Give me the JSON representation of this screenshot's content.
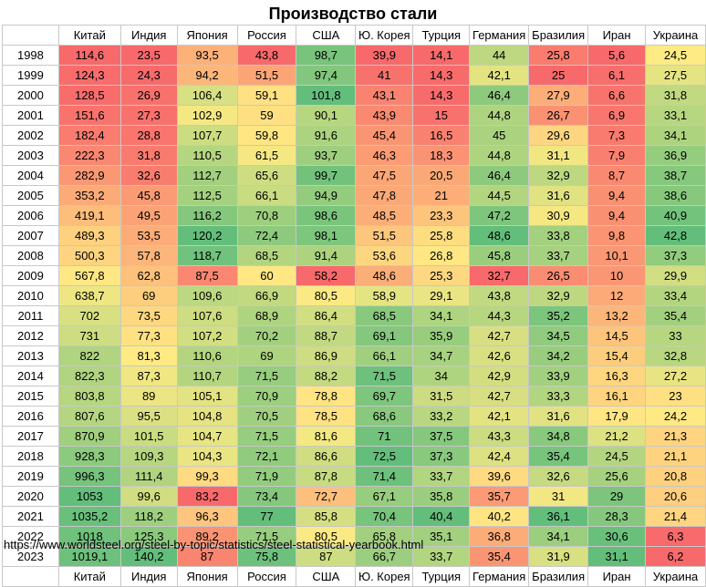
{
  "title": "Производство стали",
  "source_url": "https://www.worldsteel.org/steel-by-topic/statistics/steel-statistical-yearbook.html",
  "colors": {
    "low": "#f8696b",
    "mid": "#ffeb84",
    "high": "#63be7b"
  },
  "chart_data": {
    "type": "table",
    "columns": [
      "Китай",
      "Индия",
      "Япония",
      "Россия",
      "США",
      "Ю. Корея",
      "Турция",
      "Германия",
      "Бразилия",
      "Иран",
      "Украина"
    ],
    "rows": [
      {
        "year": "1998",
        "values": [
          "114,6",
          "23,5",
          "93,5",
          "43,8",
          "98,7",
          "39,9",
          "14,1",
          "44",
          "25,8",
          "5,6",
          "24,5"
        ]
      },
      {
        "year": "1999",
        "values": [
          "124,3",
          "24,3",
          "94,2",
          "51,5",
          "97,4",
          "41",
          "14,3",
          "42,1",
          "25",
          "6,1",
          "27,5"
        ]
      },
      {
        "year": "2000",
        "values": [
          "128,5",
          "26,9",
          "106,4",
          "59,1",
          "101,8",
          "43,1",
          "14,3",
          "46,4",
          "27,9",
          "6,6",
          "31,8"
        ]
      },
      {
        "year": "2001",
        "values": [
          "151,6",
          "27,3",
          "102,9",
          "59",
          "90,1",
          "43,9",
          "15",
          "44,8",
          "26,7",
          "6,9",
          "33,1"
        ]
      },
      {
        "year": "2002",
        "values": [
          "182,4",
          "28,8",
          "107,7",
          "59,8",
          "91,6",
          "45,4",
          "16,5",
          "45",
          "29,6",
          "7,3",
          "34,1"
        ]
      },
      {
        "year": "2003",
        "values": [
          "222,3",
          "31,8",
          "110,5",
          "61,5",
          "93,7",
          "46,3",
          "18,3",
          "44,8",
          "31,1",
          "7,9",
          "36,9"
        ]
      },
      {
        "year": "2004",
        "values": [
          "282,9",
          "32,6",
          "112,7",
          "65,6",
          "99,7",
          "47,5",
          "20,5",
          "46,4",
          "32,9",
          "8,7",
          "38,7"
        ]
      },
      {
        "year": "2005",
        "values": [
          "353,2",
          "45,8",
          "112,5",
          "66,1",
          "94,9",
          "47,8",
          "21",
          "44,5",
          "31,6",
          "9,4",
          "38,6"
        ]
      },
      {
        "year": "2006",
        "values": [
          "419,1",
          "49,5",
          "116,2",
          "70,8",
          "98,6",
          "48,5",
          "23,3",
          "47,2",
          "30,9",
          "9,4",
          "40,9"
        ]
      },
      {
        "year": "2007",
        "values": [
          "489,3",
          "53,5",
          "120,2",
          "72,4",
          "98,1",
          "51,5",
          "25,8",
          "48,6",
          "33,8",
          "9,8",
          "42,8"
        ]
      },
      {
        "year": "2008",
        "values": [
          "500,3",
          "57,8",
          "118,7",
          "68,5",
          "91,4",
          "53,6",
          "26,8",
          "45,8",
          "33,7",
          "10,1",
          "37,3"
        ]
      },
      {
        "year": "2009",
        "values": [
          "567,8",
          "62,8",
          "87,5",
          "60",
          "58,2",
          "48,6",
          "25,3",
          "32,7",
          "26,5",
          "10",
          "29,9"
        ]
      },
      {
        "year": "2010",
        "values": [
          "638,7",
          "69",
          "109,6",
          "66,9",
          "80,5",
          "58,9",
          "29,1",
          "43,8",
          "32,9",
          "12",
          "33,4"
        ]
      },
      {
        "year": "2011",
        "values": [
          "702",
          "73,5",
          "107,6",
          "68,9",
          "86,4",
          "68,5",
          "34,1",
          "44,3",
          "35,2",
          "13,2",
          "35,4"
        ]
      },
      {
        "year": "2012",
        "values": [
          "731",
          "77,3",
          "107,2",
          "70,2",
          "88,7",
          "69,1",
          "35,9",
          "42,7",
          "34,5",
          "14,5",
          "33"
        ]
      },
      {
        "year": "2013",
        "values": [
          "822",
          "81,3",
          "110,6",
          "69",
          "86,9",
          "66,1",
          "34,7",
          "42,6",
          "34,2",
          "15,4",
          "32,8"
        ]
      },
      {
        "year": "2014",
        "values": [
          "822,3",
          "87,3",
          "110,7",
          "71,5",
          "88,2",
          "71,5",
          "34",
          "42,9",
          "33,9",
          "16,3",
          "27,2"
        ]
      },
      {
        "year": "2015",
        "values": [
          "803,8",
          "89",
          "105,1",
          "70,9",
          "78,8",
          "69,7",
          "31,5",
          "42,7",
          "33,3",
          "16,1",
          "23"
        ]
      },
      {
        "year": "2016",
        "values": [
          "807,6",
          "95,5",
          "104,8",
          "70,5",
          "78,5",
          "68,6",
          "33,2",
          "42,1",
          "31,6",
          "17,9",
          "24,2"
        ]
      },
      {
        "year": "2017",
        "values": [
          "870,9",
          "101,5",
          "104,7",
          "71,5",
          "81,6",
          "71",
          "37,5",
          "43,3",
          "34,8",
          "21,2",
          "21,3"
        ]
      },
      {
        "year": "2018",
        "values": [
          "928,3",
          "109,3",
          "104,3",
          "72,1",
          "86,6",
          "72,5",
          "37,3",
          "42,4",
          "35,4",
          "24,5",
          "21,1"
        ]
      },
      {
        "year": "2019",
        "values": [
          "996,3",
          "111,4",
          "99,3",
          "71,9",
          "87,8",
          "71,4",
          "33,7",
          "39,6",
          "32,6",
          "25,6",
          "20,8"
        ]
      },
      {
        "year": "2020",
        "values": [
          "1053",
          "99,6",
          "83,2",
          "73,4",
          "72,7",
          "67,1",
          "35,8",
          "35,7",
          "31",
          "29",
          "20,6"
        ]
      },
      {
        "year": "2021",
        "values": [
          "1035,2",
          "118,2",
          "96,3",
          "77",
          "85,8",
          "70,4",
          "40,4",
          "40,2",
          "36,1",
          "28,3",
          "21,4"
        ]
      },
      {
        "year": "2022",
        "values": [
          "1018",
          "125,3",
          "89,2",
          "71,5",
          "80,5",
          "65,8",
          "35,1",
          "36,8",
          "34,1",
          "30,6",
          "6,3"
        ]
      },
      {
        "year": "2023",
        "values": [
          "1019,1",
          "140,2",
          "87",
          "75,8",
          "87",
          "66,7",
          "33,7",
          "35,4",
          "31,9",
          "31,1",
          "6,2"
        ]
      }
    ]
  }
}
